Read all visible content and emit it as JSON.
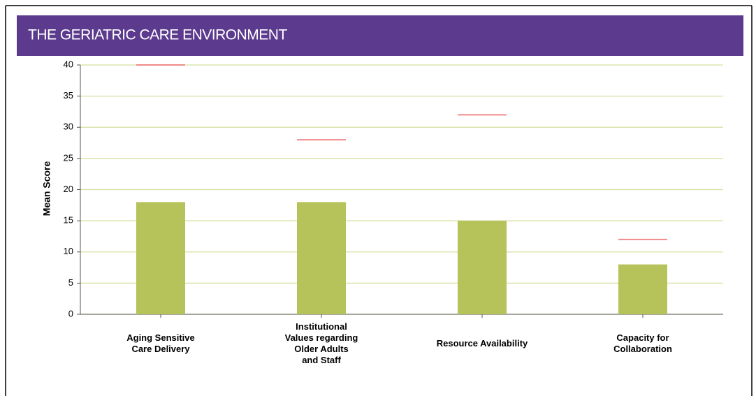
{
  "chart_data": {
    "type": "bar",
    "title": "THE GERIATRIC CARE ENVIRONMENT",
    "ylabel": "Mean Score",
    "categories": [
      "Aging Sensitive\nCare Delivery",
      "Institutional\nValues regarding\nOlder Adults\nand Staff",
      "Resource Availability",
      "Capacity for\nCollaboration"
    ],
    "series": [
      {
        "color": "#b5c35a",
        "values": [
          18,
          18,
          15,
          8
        ]
      },
      {
        "color": "#f08a8a",
        "values": [
          40,
          28,
          32,
          12
        ]
      }
    ],
    "ylim": [
      0,
      40
    ],
    "yticks": [
      0,
      5,
      10,
      15,
      20,
      25,
      30,
      35,
      40
    ],
    "grid": true
  }
}
